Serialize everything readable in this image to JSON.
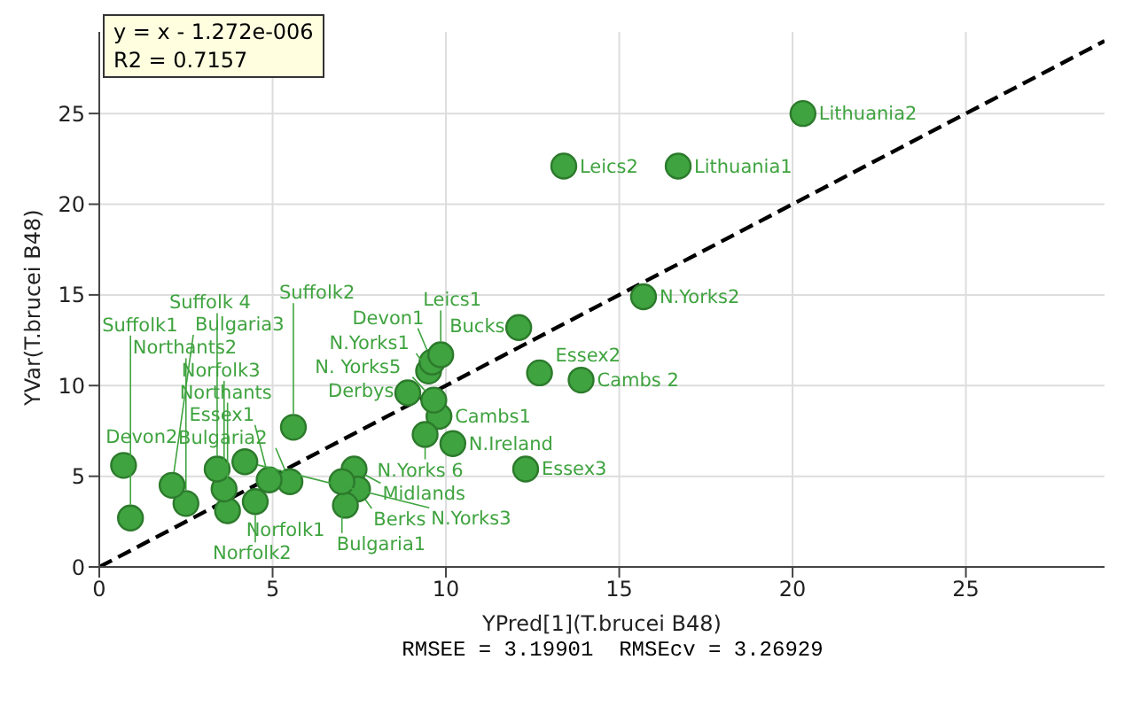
{
  "chart_data": {
    "type": "scatter",
    "xlabel": "YPred[1](T.brucei B48)",
    "ylabel": "YVar(T.brucei B48)",
    "xlim": [
      0,
      29
    ],
    "ylim": [
      0,
      29.5
    ],
    "xticks": [
      0,
      5,
      10,
      15,
      20,
      25
    ],
    "yticks": [
      0,
      5,
      10,
      15,
      20,
      25
    ],
    "grid": true,
    "legend": false,
    "marker": "circle",
    "series": [
      {
        "color": "#3fa33f",
        "x": [
          20.3,
          13.4,
          16.7,
          15.7,
          12.1,
          12.7,
          13.9,
          12.3,
          10.2,
          9.8,
          9.65,
          8.9,
          9.5,
          9.6,
          9.85,
          9.4,
          7.35,
          7.45,
          7.1,
          7.0,
          5.5,
          4.9,
          4.5,
          3.7,
          3.6,
          2.5,
          0.9,
          2.1,
          0.7,
          3.4,
          4.2,
          5.6
        ],
        "values": [
          25.0,
          22.1,
          22.1,
          14.9,
          13.2,
          10.7,
          10.3,
          5.4,
          6.8,
          8.3,
          9.2,
          9.6,
          10.8,
          11.3,
          11.7,
          7.3,
          5.4,
          4.3,
          3.4,
          4.7,
          4.7,
          4.8,
          3.6,
          3.1,
          4.3,
          3.5,
          2.7,
          4.5,
          5.6,
          5.4,
          5.8,
          7.7
        ]
      },
      {
        "type": "line",
        "color": "#000000",
        "line_style": "dashed",
        "marker": "none",
        "x": [
          0,
          29
        ],
        "values": [
          0,
          29
        ]
      }
    ],
    "annotations": [
      "y = x - 1.272e-006",
      "R2 = 0.7157",
      "RMSEE = 3.19901  RMSEcv = 3.26929",
      {
        "text": "Lithuania2",
        "x": 20.3,
        "y": 25.0
      },
      {
        "text": "Leics2",
        "x": 13.4,
        "y": 22.1
      },
      {
        "text": "Lithuania1",
        "x": 16.7,
        "y": 22.1
      },
      {
        "text": "N.Yorks2",
        "x": 15.7,
        "y": 14.9
      },
      {
        "text": "Bucks",
        "x": 12.1,
        "y": 13.2
      },
      {
        "text": "Essex2",
        "x": 12.7,
        "y": 10.7
      },
      {
        "text": "Cambs 2",
        "x": 13.9,
        "y": 10.3
      },
      {
        "text": "Essex3",
        "x": 12.3,
        "y": 5.4
      },
      {
        "text": "N.Ireland",
        "x": 10.2,
        "y": 6.8
      },
      {
        "text": "Cambs1",
        "x": 9.8,
        "y": 8.3
      },
      {
        "text": "N. Yorks5",
        "x": 9.65,
        "y": 9.2
      },
      {
        "text": "Derbys",
        "x": 8.9,
        "y": 9.6
      },
      {
        "text": "N.Yorks1",
        "x": 9.5,
        "y": 10.8
      },
      {
        "text": "Devon1",
        "x": 9.6,
        "y": 11.3
      },
      {
        "text": "Leics1",
        "x": 9.85,
        "y": 11.7
      },
      {
        "text": "N.Yorks 6",
        "x": 9.4,
        "y": 7.3
      },
      {
        "text": "Midlands",
        "x": 7.35,
        "y": 5.4
      },
      {
        "text": "Berks",
        "x": 7.45,
        "y": 4.3
      },
      {
        "text": "Norfolk1",
        "x": 7.1,
        "y": 3.4
      },
      {
        "text": "Bulgaria1",
        "x": 7.0,
        "y": 4.7
      },
      {
        "text": "Bulgaria2",
        "x": 5.5,
        "y": 4.7
      },
      {
        "text": "Essex1",
        "x": 4.9,
        "y": 4.8
      },
      {
        "text": "Norfolk2",
        "x": 4.5,
        "y": 3.6
      },
      {
        "text": "Northants",
        "x": 3.7,
        "y": 3.1
      },
      {
        "text": "Norfolk3",
        "x": 3.6,
        "y": 4.3
      },
      {
        "text": "Northants2",
        "x": 2.5,
        "y": 3.5
      },
      {
        "text": "Suffolk1",
        "x": 0.9,
        "y": 2.7
      },
      {
        "text": "Bulgaria3",
        "x": 2.1,
        "y": 4.5
      },
      {
        "text": "Devon2",
        "x": 0.7,
        "y": 5.6
      },
      {
        "text": "Suffolk 4",
        "x": 3.4,
        "y": 5.4
      },
      {
        "text": "N.Yorks3",
        "x": 4.2,
        "y": 5.8
      },
      {
        "text": "Suffolk2",
        "x": 5.6,
        "y": 7.7
      }
    ]
  }
}
